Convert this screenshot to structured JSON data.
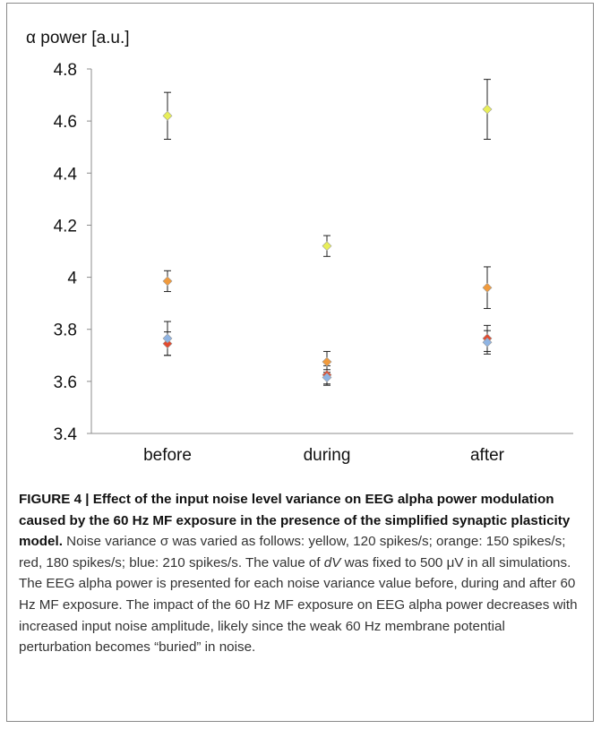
{
  "chart_data": {
    "type": "scatter",
    "ylabel": "α power [a.u.]",
    "categories": [
      "before",
      "during",
      "after"
    ],
    "ylim": [
      3.4,
      4.8
    ],
    "yticks": [
      "3.4",
      "3.6",
      "3.8",
      "4",
      "4.2",
      "4.4",
      "4.6",
      "4.8"
    ],
    "grid": false,
    "legend": "none",
    "series": [
      {
        "color": "#e8ee58",
        "values": [
          4.62,
          4.12,
          4.645
        ],
        "err_low": [
          0.09,
          0.04,
          0.115
        ],
        "err_high": [
          0.09,
          0.04,
          0.115
        ]
      },
      {
        "color": "#f09a3c",
        "values": [
          3.985,
          3.675,
          3.96
        ],
        "err_low": [
          0.04,
          0.04,
          0.08
        ],
        "err_high": [
          0.04,
          0.04,
          0.08
        ]
      },
      {
        "color": "#e34a2e",
        "values": [
          3.745,
          3.625,
          3.765
        ],
        "err_low": [
          0.045,
          0.035,
          0.05
        ],
        "err_high": [
          0.045,
          0.035,
          0.05
        ]
      },
      {
        "color": "#8fb4e3",
        "values": [
          3.765,
          3.615,
          3.75
        ],
        "err_low": [
          0.065,
          0.03,
          0.045
        ],
        "err_high": [
          0.065,
          0.03,
          0.045
        ]
      }
    ]
  },
  "caption": {
    "heading": "FIGURE 4 | Effect of the input noise level variance on EEG alpha power modulation caused by the 60 Hz MF exposure in the presence of the simplified synaptic plasticity model.",
    "text_1": " Noise variance σ was varied as follows: yellow, 120 spikes/s; orange: 150 spikes/s; red, 180 spikes/s; blue: 210 spikes/s. The value of ",
    "var": "dV",
    "text_2": " was fixed to 500 μV in all simulations. The EEG alpha power is presented for each noise variance value before, during and after 60 Hz MF exposure. The impact of the 60 Hz MF exposure on EEG alpha power decreases with increased input noise amplitude, likely since the weak 60 Hz membrane potential perturbation becomes “buried” in noise."
  }
}
